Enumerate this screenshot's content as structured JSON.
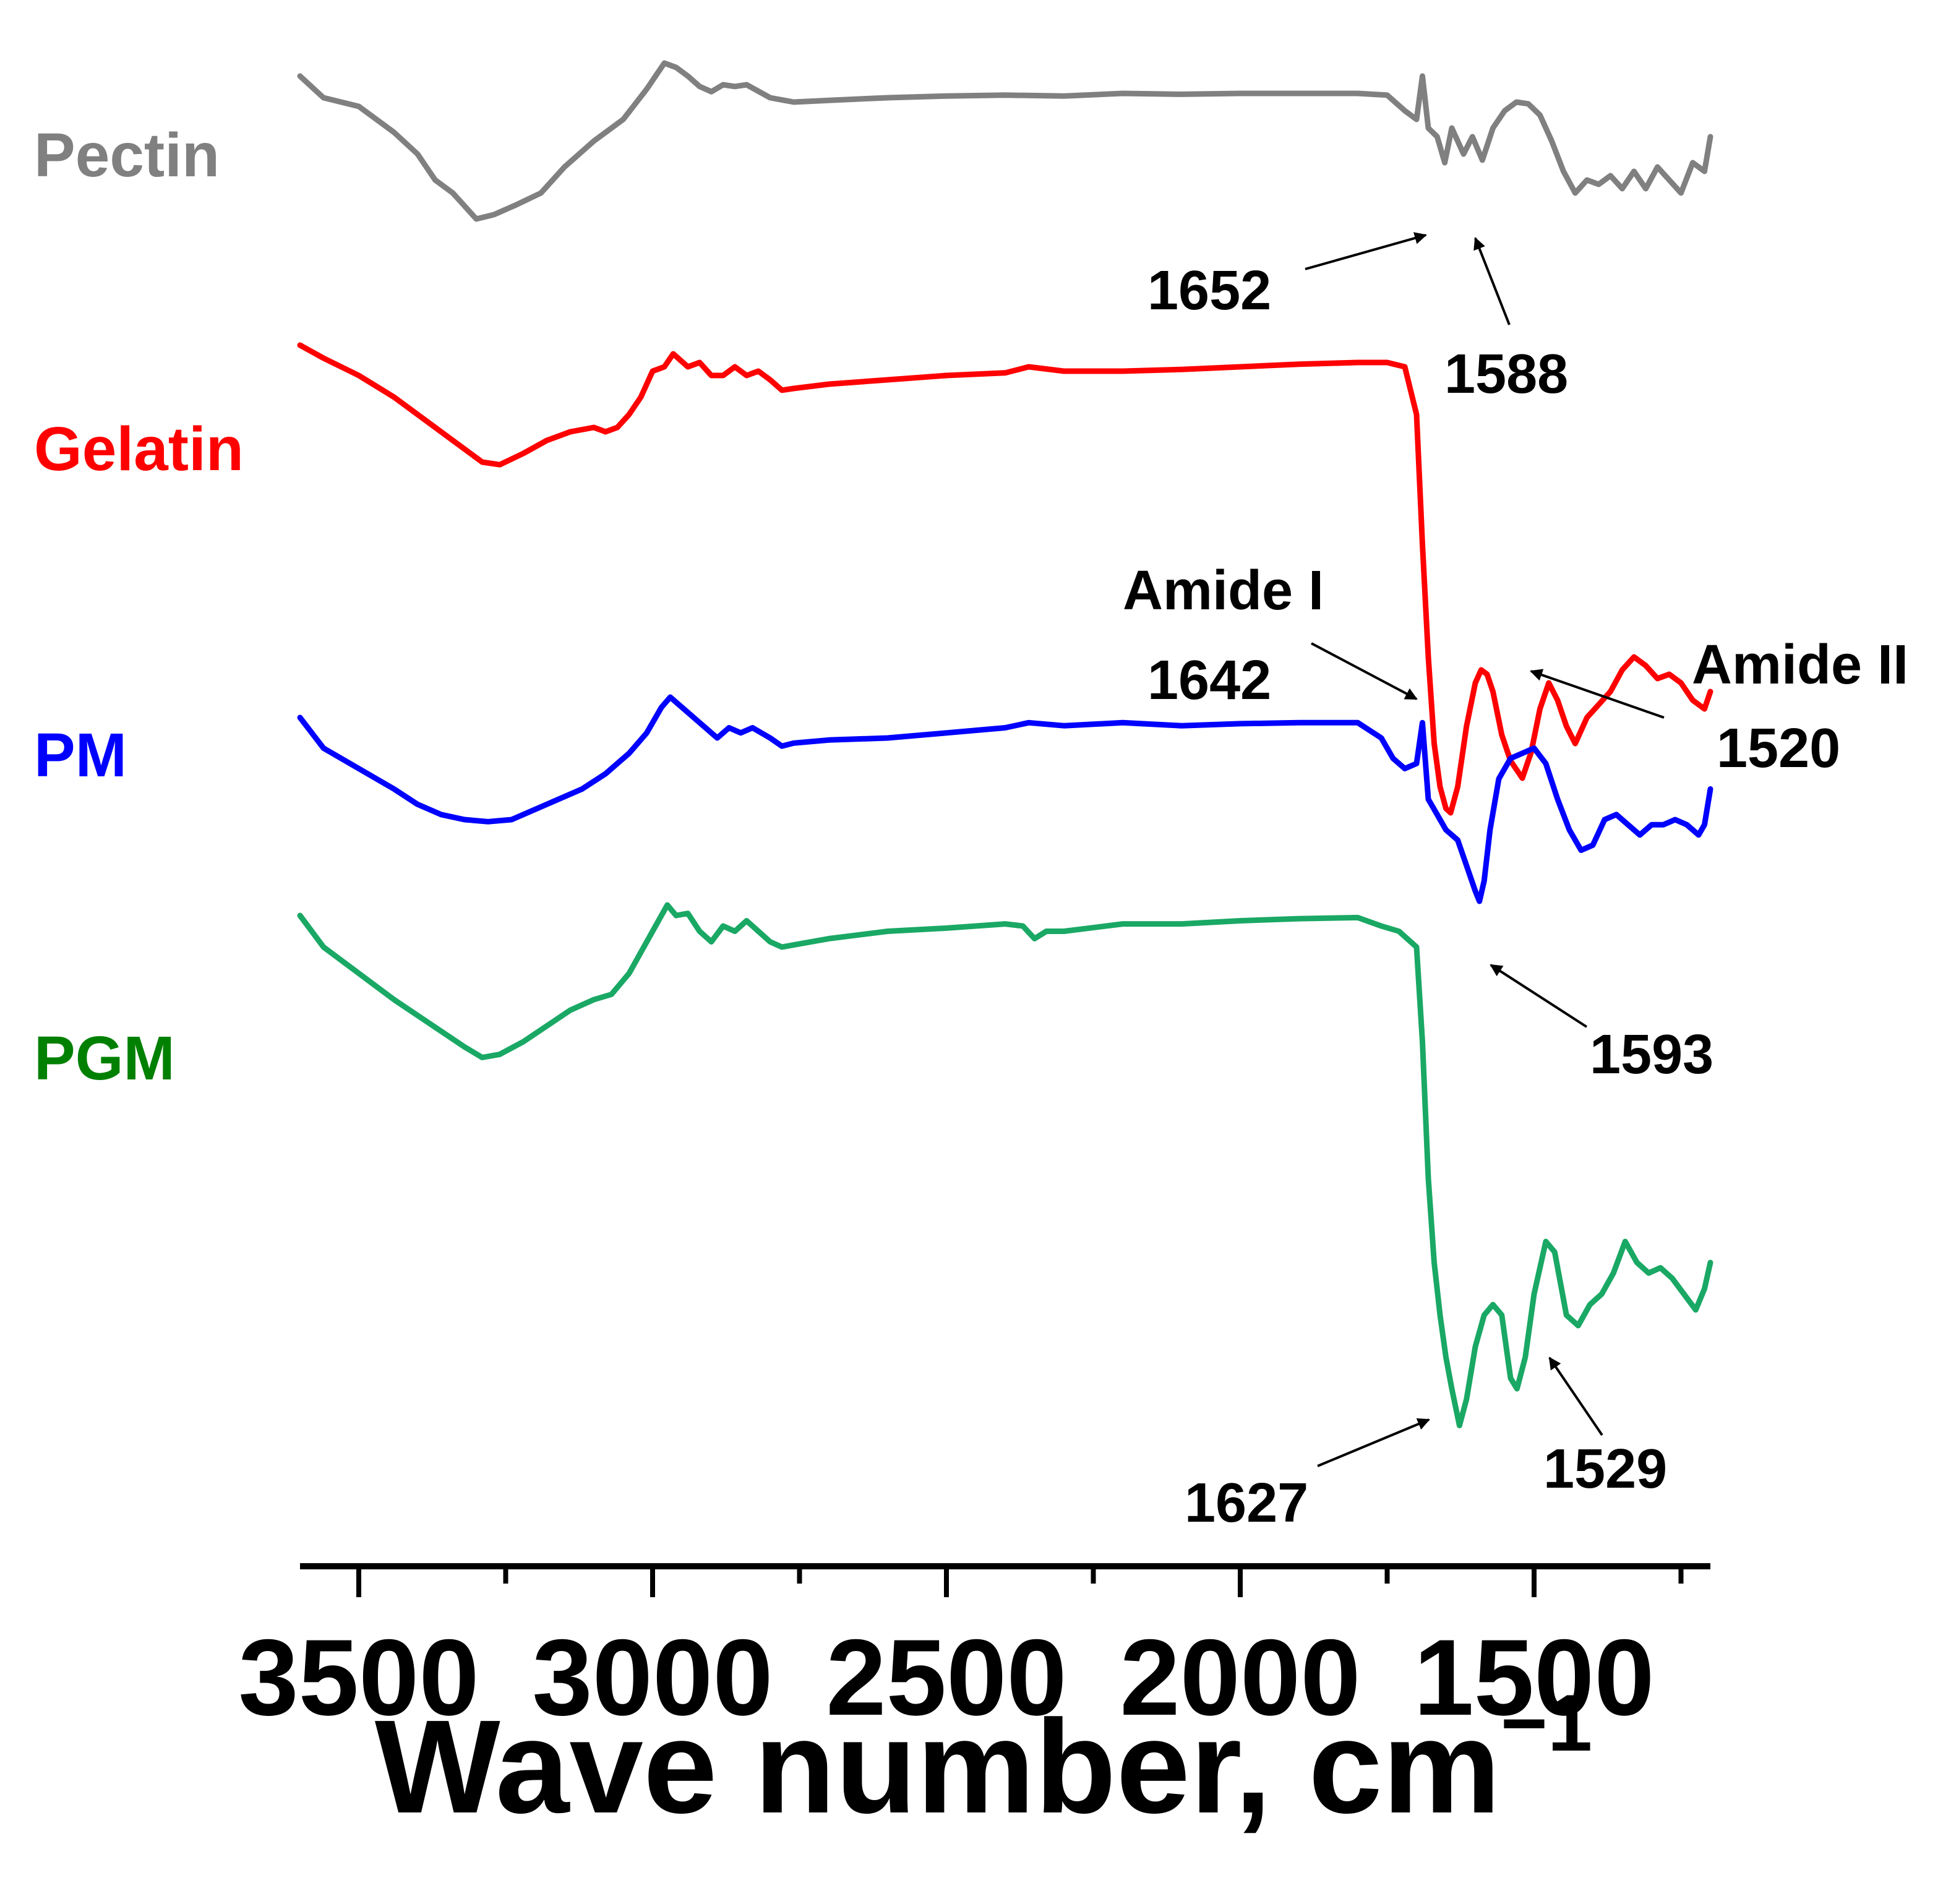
{
  "chart_data": {
    "type": "line",
    "xlabel": "Wave number, cm",
    "xlabel_superscript": "−1",
    "xlim": [
      3600,
      1200
    ],
    "x_direction": "reversed",
    "x_major_ticks": [
      3500,
      3000,
      2500,
      2000,
      1500
    ],
    "x_tick_labels": [
      "3500",
      "3000",
      "2500",
      "2000",
      "1500"
    ],
    "x_minor_ticks": [
      3250,
      2750,
      2250,
      1750,
      1250
    ],
    "y_axis": "none (stacked offset spectra, transmittance)",
    "grid": false,
    "legend": "inline labels at left of each spectrum",
    "series": [
      {
        "name": "Pectin",
        "color": "#808080",
        "label_color": "#808080",
        "points": [
          [
            3600,
            0.2
          ],
          [
            3560,
            0.45
          ],
          [
            3500,
            0.55
          ],
          [
            3440,
            0.85
          ],
          [
            3400,
            1.1
          ],
          [
            3370,
            1.4
          ],
          [
            3340,
            1.55
          ],
          [
            3300,
            1.85
          ],
          [
            3270,
            1.8
          ],
          [
            3230,
            1.68
          ],
          [
            3190,
            1.55
          ],
          [
            3150,
            1.25
          ],
          [
            3100,
            0.95
          ],
          [
            3050,
            0.7
          ],
          [
            3010,
            0.35
          ],
          [
            2980,
            0.05
          ],
          [
            2960,
            0.1
          ],
          [
            2940,
            0.2
          ],
          [
            2920,
            0.32
          ],
          [
            2900,
            0.38
          ],
          [
            2880,
            0.3
          ],
          [
            2860,
            0.32
          ],
          [
            2840,
            0.3
          ],
          [
            2800,
            0.45
          ],
          [
            2760,
            0.5
          ],
          [
            2700,
            0.48
          ],
          [
            2600,
            0.45
          ],
          [
            2500,
            0.43
          ],
          [
            2400,
            0.42
          ],
          [
            2300,
            0.43
          ],
          [
            2200,
            0.4
          ],
          [
            2100,
            0.41
          ],
          [
            2000,
            0.4
          ],
          [
            1900,
            0.4
          ],
          [
            1800,
            0.4
          ],
          [
            1750,
            0.42
          ],
          [
            1720,
            0.6
          ],
          [
            1700,
            0.7
          ],
          [
            1690,
            0.2
          ],
          [
            1680,
            0.8
          ],
          [
            1665,
            0.9
          ],
          [
            1652,
            1.2
          ],
          [
            1640,
            0.8
          ],
          [
            1620,
            1.1
          ],
          [
            1605,
            0.9
          ],
          [
            1588,
            1.17
          ],
          [
            1570,
            0.8
          ],
          [
            1550,
            0.6
          ],
          [
            1530,
            0.5
          ],
          [
            1510,
            0.52
          ],
          [
            1490,
            0.65
          ],
          [
            1470,
            0.95
          ],
          [
            1450,
            1.3
          ],
          [
            1430,
            1.55
          ],
          [
            1410,
            1.4
          ],
          [
            1390,
            1.45
          ],
          [
            1370,
            1.35
          ],
          [
            1350,
            1.5
          ],
          [
            1330,
            1.3
          ],
          [
            1310,
            1.5
          ],
          [
            1290,
            1.25
          ],
          [
            1270,
            1.4
          ],
          [
            1250,
            1.55
          ],
          [
            1230,
            1.2
          ],
          [
            1210,
            1.3
          ],
          [
            1200,
            0.9
          ]
        ],
        "annotations": [
          {
            "text": "1652",
            "x": 1652
          },
          {
            "text": "1588",
            "x": 1588
          }
        ]
      },
      {
        "name": "Gelatin",
        "color": "#ff0000",
        "label_color": "#ff0000",
        "points": [
          [
            3600,
            0.2
          ],
          [
            3560,
            0.35
          ],
          [
            3500,
            0.55
          ],
          [
            3440,
            0.8
          ],
          [
            3400,
            1.0
          ],
          [
            3360,
            1.2
          ],
          [
            3320,
            1.4
          ],
          [
            3290,
            1.55
          ],
          [
            3260,
            1.58
          ],
          [
            3220,
            1.45
          ],
          [
            3180,
            1.3
          ],
          [
            3140,
            1.2
          ],
          [
            3100,
            1.15
          ],
          [
            3080,
            1.2
          ],
          [
            3060,
            1.15
          ],
          [
            3040,
            1.0
          ],
          [
            3020,
            0.8
          ],
          [
            3000,
            0.5
          ],
          [
            2980,
            0.45
          ],
          [
            2965,
            0.3
          ],
          [
            2940,
            0.45
          ],
          [
            2920,
            0.4
          ],
          [
            2900,
            0.55
          ],
          [
            2880,
            0.55
          ],
          [
            2860,
            0.45
          ],
          [
            2840,
            0.55
          ],
          [
            2820,
            0.5
          ],
          [
            2800,
            0.6
          ],
          [
            2780,
            0.72
          ],
          [
            2760,
            0.7
          ],
          [
            2700,
            0.65
          ],
          [
            2600,
            0.6
          ],
          [
            2500,
            0.55
          ],
          [
            2400,
            0.52
          ],
          [
            2360,
            0.45
          ],
          [
            2300,
            0.5
          ],
          [
            2200,
            0.5
          ],
          [
            2100,
            0.48
          ],
          [
            2000,
            0.45
          ],
          [
            1900,
            0.42
          ],
          [
            1800,
            0.4
          ],
          [
            1750,
            0.4
          ],
          [
            1720,
            0.45
          ],
          [
            1700,
            1.0
          ],
          [
            1690,
            2.5
          ],
          [
            1680,
            3.8
          ],
          [
            1670,
            4.8
          ],
          [
            1660,
            5.3
          ],
          [
            1650,
            5.55
          ],
          [
            1642,
            5.6
          ],
          [
            1630,
            5.3
          ],
          [
            1615,
            4.6
          ],
          [
            1600,
            4.1
          ],
          [
            1590,
            3.95
          ],
          [
            1580,
            4.0
          ],
          [
            1570,
            4.2
          ],
          [
            1555,
            4.7
          ],
          [
            1540,
            5.0
          ],
          [
            1520,
            5.2
          ],
          [
            1505,
            4.9
          ],
          [
            1490,
            4.4
          ],
          [
            1475,
            4.1
          ],
          [
            1460,
            4.3
          ],
          [
            1445,
            4.6
          ],
          [
            1430,
            4.8
          ],
          [
            1410,
            4.5
          ],
          [
            1390,
            4.35
          ],
          [
            1370,
            4.2
          ],
          [
            1350,
            3.95
          ],
          [
            1330,
            3.8
          ],
          [
            1310,
            3.9
          ],
          [
            1290,
            4.05
          ],
          [
            1270,
            4.0
          ],
          [
            1250,
            4.1
          ],
          [
            1230,
            4.3
          ],
          [
            1210,
            4.4
          ],
          [
            1200,
            4.2
          ]
        ],
        "annotations": [
          {
            "text": "Amide I",
            "x": 1642
          },
          {
            "text": "1642",
            "x": 1642
          },
          {
            "text": "Amide II",
            "x": 1520
          },
          {
            "text": "1520",
            "x": 1520
          }
        ]
      },
      {
        "name": "PM",
        "color": "#0000ff",
        "label_color": "#0000ff",
        "points": [
          [
            3600,
            0.0
          ],
          [
            3560,
            0.3
          ],
          [
            3500,
            0.5
          ],
          [
            3440,
            0.7
          ],
          [
            3400,
            0.85
          ],
          [
            3360,
            0.95
          ],
          [
            3320,
            1.0
          ],
          [
            3280,
            1.02
          ],
          [
            3240,
            1.0
          ],
          [
            3200,
            0.9
          ],
          [
            3160,
            0.8
          ],
          [
            3120,
            0.7
          ],
          [
            3080,
            0.55
          ],
          [
            3040,
            0.35
          ],
          [
            3010,
            0.15
          ],
          [
            2985,
            -0.1
          ],
          [
            2970,
            -0.2
          ],
          [
            2950,
            -0.1
          ],
          [
            2930,
            0.0
          ],
          [
            2910,
            0.1
          ],
          [
            2890,
            0.2
          ],
          [
            2870,
            0.1
          ],
          [
            2850,
            0.15
          ],
          [
            2830,
            0.1
          ],
          [
            2800,
            0.2
          ],
          [
            2780,
            0.28
          ],
          [
            2760,
            0.25
          ],
          [
            2700,
            0.22
          ],
          [
            2600,
            0.2
          ],
          [
            2500,
            0.15
          ],
          [
            2400,
            0.1
          ],
          [
            2360,
            0.05
          ],
          [
            2300,
            0.08
          ],
          [
            2200,
            0.05
          ],
          [
            2100,
            0.08
          ],
          [
            2000,
            0.06
          ],
          [
            1900,
            0.05
          ],
          [
            1800,
            0.05
          ],
          [
            1760,
            0.2
          ],
          [
            1740,
            0.4
          ],
          [
            1720,
            0.5
          ],
          [
            1700,
            0.45
          ],
          [
            1690,
            0.05
          ],
          [
            1680,
            0.8
          ],
          [
            1665,
            0.95
          ],
          [
            1650,
            1.1
          ],
          [
            1630,
            1.2
          ],
          [
            1615,
            1.45
          ],
          [
            1600,
            1.7
          ],
          [
            1593,
            1.8
          ],
          [
            1585,
            1.6
          ],
          [
            1575,
            1.1
          ],
          [
            1560,
            0.6
          ],
          [
            1540,
            0.4
          ],
          [
            1520,
            0.35
          ],
          [
            1500,
            0.3
          ],
          [
            1480,
            0.45
          ],
          [
            1460,
            0.8
          ],
          [
            1440,
            1.1
          ],
          [
            1420,
            1.3
          ],
          [
            1400,
            1.25
          ],
          [
            1380,
            1.0
          ],
          [
            1360,
            0.95
          ],
          [
            1340,
            1.05
          ],
          [
            1320,
            1.15
          ],
          [
            1300,
            1.05
          ],
          [
            1280,
            1.05
          ],
          [
            1260,
            1.0
          ],
          [
            1240,
            1.05
          ],
          [
            1220,
            1.15
          ],
          [
            1210,
            1.05
          ],
          [
            1200,
            0.7
          ]
        ],
        "annotations": [
          {
            "text": "1593",
            "x": 1593
          }
        ]
      },
      {
        "name": "PGM",
        "color": "#1aa865",
        "label_color": "#008000",
        "points": [
          [
            3600,
            0.0
          ],
          [
            3560,
            0.3
          ],
          [
            3500,
            0.55
          ],
          [
            3440,
            0.8
          ],
          [
            3400,
            0.95
          ],
          [
            3360,
            1.1
          ],
          [
            3320,
            1.25
          ],
          [
            3290,
            1.35
          ],
          [
            3260,
            1.32
          ],
          [
            3220,
            1.2
          ],
          [
            3180,
            1.05
          ],
          [
            3140,
            0.9
          ],
          [
            3100,
            0.8
          ],
          [
            3070,
            0.75
          ],
          [
            3040,
            0.55
          ],
          [
            3010,
            0.25
          ],
          [
            2990,
            0.05
          ],
          [
            2975,
            -0.1
          ],
          [
            2960,
            0.0
          ],
          [
            2940,
            -0.02
          ],
          [
            2920,
            0.15
          ],
          [
            2900,
            0.25
          ],
          [
            2880,
            0.1
          ],
          [
            2860,
            0.15
          ],
          [
            2840,
            0.05
          ],
          [
            2820,
            0.15
          ],
          [
            2800,
            0.25
          ],
          [
            2780,
            0.3
          ],
          [
            2760,
            0.28
          ],
          [
            2700,
            0.22
          ],
          [
            2600,
            0.15
          ],
          [
            2500,
            0.12
          ],
          [
            2400,
            0.08
          ],
          [
            2370,
            0.1
          ],
          [
            2350,
            0.22
          ],
          [
            2330,
            0.15
          ],
          [
            2300,
            0.15
          ],
          [
            2200,
            0.08
          ],
          [
            2100,
            0.08
          ],
          [
            2000,
            0.05
          ],
          [
            1900,
            0.03
          ],
          [
            1800,
            0.02
          ],
          [
            1760,
            0.1
          ],
          [
            1730,
            0.15
          ],
          [
            1720,
            0.2
          ],
          [
            1700,
            0.3
          ],
          [
            1690,
            1.2
          ],
          [
            1680,
            2.5
          ],
          [
            1670,
            3.3
          ],
          [
            1660,
            3.8
          ],
          [
            1650,
            4.2
          ],
          [
            1640,
            4.5
          ],
          [
            1627,
            4.85
          ],
          [
            1615,
            4.6
          ],
          [
            1600,
            4.1
          ],
          [
            1585,
            3.8
          ],
          [
            1570,
            3.7
          ],
          [
            1555,
            3.8
          ],
          [
            1540,
            4.4
          ],
          [
            1529,
            4.5
          ],
          [
            1515,
            4.2
          ],
          [
            1500,
            3.6
          ],
          [
            1480,
            3.1
          ],
          [
            1465,
            3.2
          ],
          [
            1445,
            3.8
          ],
          [
            1425,
            3.9
          ],
          [
            1405,
            3.7
          ],
          [
            1385,
            3.6
          ],
          [
            1365,
            3.4
          ],
          [
            1345,
            3.1
          ],
          [
            1325,
            3.3
          ],
          [
            1305,
            3.4
          ],
          [
            1285,
            3.35
          ],
          [
            1265,
            3.45
          ],
          [
            1245,
            3.6
          ],
          [
            1225,
            3.75
          ],
          [
            1210,
            3.55
          ],
          [
            1200,
            3.3
          ]
        ],
        "annotations": [
          {
            "text": "1627",
            "x": 1627
          },
          {
            "text": "1529",
            "x": 1529
          }
        ]
      }
    ]
  }
}
